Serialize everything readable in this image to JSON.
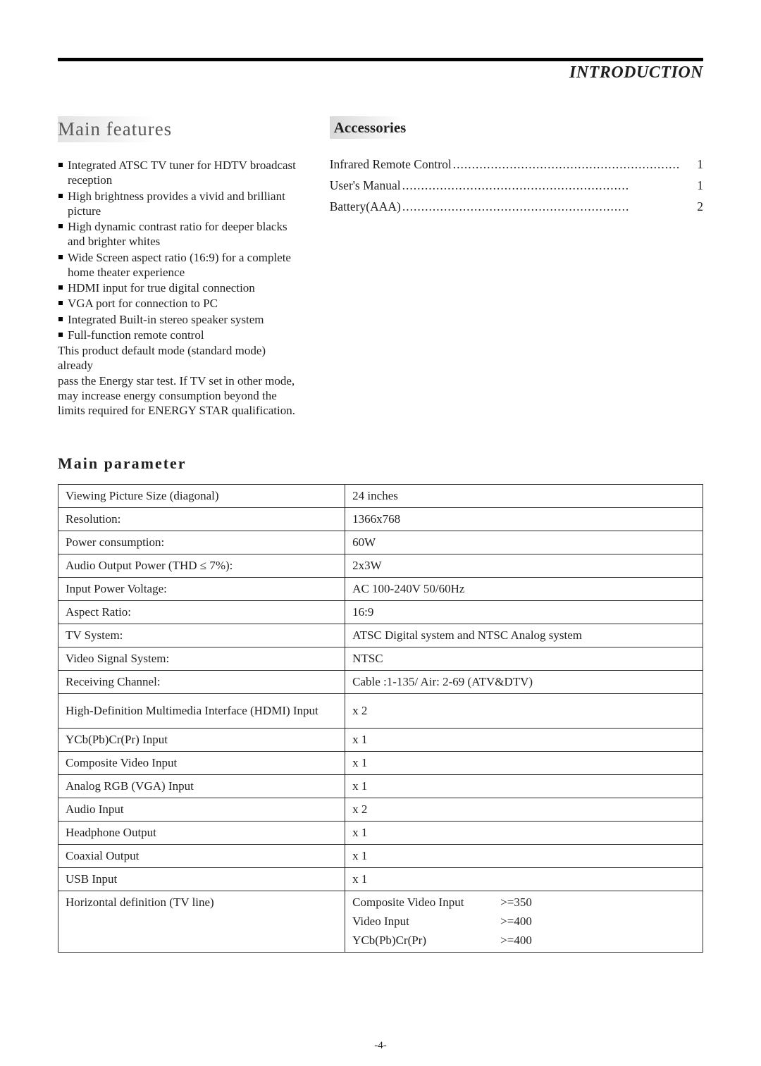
{
  "header": {
    "title": "INTRODUCTION"
  },
  "features": {
    "title": "Main  features",
    "items": [
      "Integrated ATSC TV tuner for HDTV broadcast reception",
      "High brightness provides a vivid and brilliant picture",
      "High dynamic contrast ratio for deeper blacks and brighter whites",
      "Wide Screen aspect ratio (16:9) for a complete home theater experience",
      "HDMI input for true digital connection",
      "VGA port for connection to PC",
      "Integrated Built-in stereo speaker system",
      "Full-function remote control"
    ],
    "note_l1": "This product default mode (standard mode) already",
    "note_l2": "pass the Energy star test. If TV set in other mode,",
    "note_l3": "may increase energy consumption beyond the",
    "note_l4": "limits required for ENERGY STAR qualification."
  },
  "accessories": {
    "title": "Accessories",
    "items": [
      {
        "label": "Infrared Remote Control",
        "qty": "1"
      },
      {
        "label": "User's Manual ",
        "qty": "1"
      },
      {
        "label": "Battery(AAA)",
        "qty": "2"
      }
    ]
  },
  "parameters": {
    "title": "Main   parameter",
    "rows": [
      {
        "k": "Viewing Picture Size (diagonal)",
        "v": "24 inches"
      },
      {
        "k": "Resolution:",
        "v": "1366x768"
      },
      {
        "k": "Power consumption:",
        "v": "60W"
      },
      {
        "k": "Audio Output Power (THD ≤ 7%):",
        "v": "2x3W"
      },
      {
        "k": "Input Power Voltage:",
        "v": "AC 100-240V 50/60Hz"
      },
      {
        "k": "Aspect Ratio:",
        "v": "16:9"
      },
      {
        "k": "TV System:",
        "v": "ATSC Digital system and NTSC Analog system"
      },
      {
        "k": "Video Signal System:",
        "v": "NTSC"
      },
      {
        "k": "Receiving Channel:",
        "v": "Cable :1-135/ Air: 2-69 (ATV&DTV)"
      },
      {
        "k": "High-Definition Multimedia Interface (HDMI) Input",
        "v": "x 2",
        "tall": true
      },
      {
        "k": "YCb(Pb)Cr(Pr) Input",
        "v": "x 1"
      },
      {
        "k": "Composite Video Input",
        "v": "x 1"
      },
      {
        "k": "Analog RGB (VGA) Input",
        "v": "x 1"
      },
      {
        "k": "Audio Input",
        "v": "x 2"
      },
      {
        "k": "Headphone Output",
        "v": "x 1"
      },
      {
        "k": "Coaxial Output",
        "v": "x 1"
      },
      {
        "k": "USB Input",
        "v": "x 1"
      }
    ],
    "hdef_key": "Horizontal definition (TV line)",
    "hdef": [
      {
        "a": "Composite Video Input",
        "b": ">=350"
      },
      {
        "a": "Video Input",
        "b": ">=400"
      },
      {
        "a": "YCb(Pb)Cr(Pr)",
        "b": ">=400"
      }
    ]
  },
  "page_number": "-4-",
  "colors": {
    "text": "#1f1f1f",
    "border": "#2a2a2a",
    "muted_title": "#5a5a5a",
    "gradient_start": "#d9d9d9",
    "background": "#ffffff"
  },
  "typography": {
    "base_family": "Times New Roman",
    "body_size_pt": 13,
    "section_title_size_pt": 20,
    "header_title_size_pt": 18
  }
}
